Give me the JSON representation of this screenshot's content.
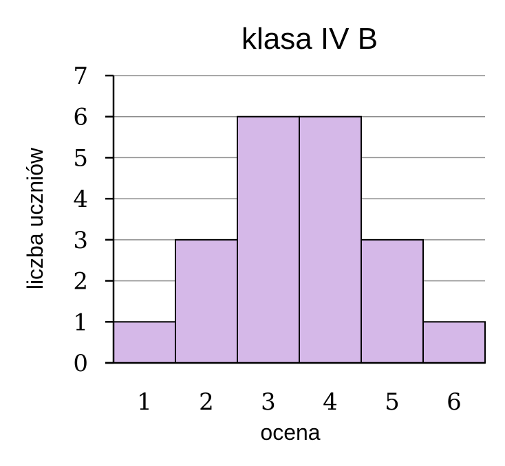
{
  "chart_data": {
    "type": "bar",
    "title": "klasa IV B",
    "xlabel": "ocena",
    "ylabel": "liczba uczniów",
    "categories": [
      "1",
      "2",
      "3",
      "4",
      "5",
      "6"
    ],
    "values": [
      1,
      3,
      6,
      6,
      3,
      1
    ],
    "ylim": [
      0,
      7
    ],
    "yticks": [
      "0",
      "1",
      "2",
      "3",
      "4",
      "5",
      "6",
      "7"
    ],
    "grid": true,
    "bar_color": "#d5b8e8"
  }
}
